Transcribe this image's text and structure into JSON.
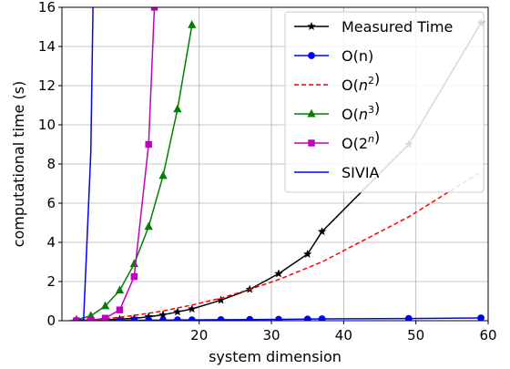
{
  "chart_data": {
    "type": "line",
    "title": "",
    "xlabel": "system dimension",
    "ylabel": "computational time (s)",
    "xlim": [
      1,
      60
    ],
    "ylim": [
      0,
      16
    ],
    "xticks": [
      20,
      30,
      40,
      50,
      60
    ],
    "xtick_labels": [
      "20",
      "30",
      "40",
      "50",
      "60"
    ],
    "yticks": [
      0,
      2,
      4,
      6,
      8,
      10,
      12,
      14,
      16
    ],
    "ytick_labels": [
      "0",
      "2",
      "4",
      "6",
      "8",
      "10",
      "12",
      "14",
      "16"
    ],
    "grid": true,
    "legend_position": "top-right",
    "series": [
      {
        "name": "Measured Time",
        "label_parts": [
          {
            "text": "Measured Time",
            "sup": ""
          }
        ],
        "color": "#000000",
        "line_style": "solid",
        "marker": "star",
        "x": [
          3,
          5,
          7,
          9,
          11,
          13,
          15,
          17,
          19,
          23,
          27,
          31,
          35,
          37,
          49,
          59
        ],
        "y": [
          0.0,
          0.0,
          0.05,
          0.08,
          0.12,
          0.2,
          0.3,
          0.45,
          0.6,
          1.05,
          1.6,
          2.4,
          3.4,
          4.55,
          9.0,
          15.2
        ]
      },
      {
        "name": "O(n)",
        "label_parts": [
          {
            "text": "O(n)",
            "sup": ""
          }
        ],
        "color": "#0000ff",
        "line_style": "solid",
        "marker": "circle",
        "x": [
          3,
          5,
          7,
          9,
          11,
          13,
          15,
          17,
          19,
          23,
          27,
          31,
          35,
          37,
          49,
          59
        ],
        "y": [
          0.0,
          0.0,
          0.01,
          0.02,
          0.02,
          0.03,
          0.03,
          0.04,
          0.04,
          0.05,
          0.06,
          0.07,
          0.08,
          0.09,
          0.11,
          0.14
        ]
      },
      {
        "name": "O(n^2)",
        "label_parts": [
          {
            "text": "O(",
            "sup": ""
          },
          {
            "text": "n",
            "sup": "2"
          },
          {
            "text": ")",
            "sup": ""
          }
        ],
        "color": "#ff0000",
        "line_style": "dashed",
        "marker": "none",
        "x": [
          3,
          5,
          7,
          9,
          11,
          13,
          15,
          17,
          19,
          23,
          27,
          31,
          35,
          37,
          49,
          59
        ],
        "y": [
          0.02,
          0.05,
          0.1,
          0.18,
          0.27,
          0.38,
          0.5,
          0.65,
          0.8,
          1.15,
          1.6,
          2.1,
          2.7,
          3.0,
          5.3,
          7.6
        ]
      },
      {
        "name": "O(n^3)",
        "label_parts": [
          {
            "text": "O(",
            "sup": ""
          },
          {
            "text": "n",
            "sup": "3"
          },
          {
            "text": ")",
            "sup": ""
          }
        ],
        "color": "#008000",
        "line_style": "solid",
        "marker": "triangle",
        "x": [
          3,
          5,
          7,
          9,
          11,
          13,
          15,
          17,
          19
        ],
        "y": [
          0.05,
          0.25,
          0.75,
          1.55,
          2.9,
          4.8,
          7.4,
          10.8,
          15.1
        ]
      },
      {
        "name": "O(2^n)",
        "label_parts": [
          {
            "text": "O(",
            "sup": ""
          },
          {
            "text": "2",
            "sup": "n"
          },
          {
            "text": ")",
            "sup": ""
          }
        ],
        "color": "#bf00bf",
        "line_style": "solid",
        "marker": "square",
        "x": [
          3,
          5,
          7,
          9,
          11,
          13,
          13.8
        ],
        "y": [
          0.0,
          0.03,
          0.13,
          0.55,
          2.25,
          9.0,
          16.0
        ]
      },
      {
        "name": "SIVIA",
        "label_parts": [
          {
            "text": "SIVIA",
            "sup": ""
          }
        ],
        "color": "#0000ff",
        "line_style": "solid",
        "marker": "none",
        "x": [
          2,
          3,
          4,
          5,
          5.3
        ],
        "y": [
          0.0,
          0.0,
          0.05,
          8.6,
          16.0
        ]
      }
    ]
  }
}
